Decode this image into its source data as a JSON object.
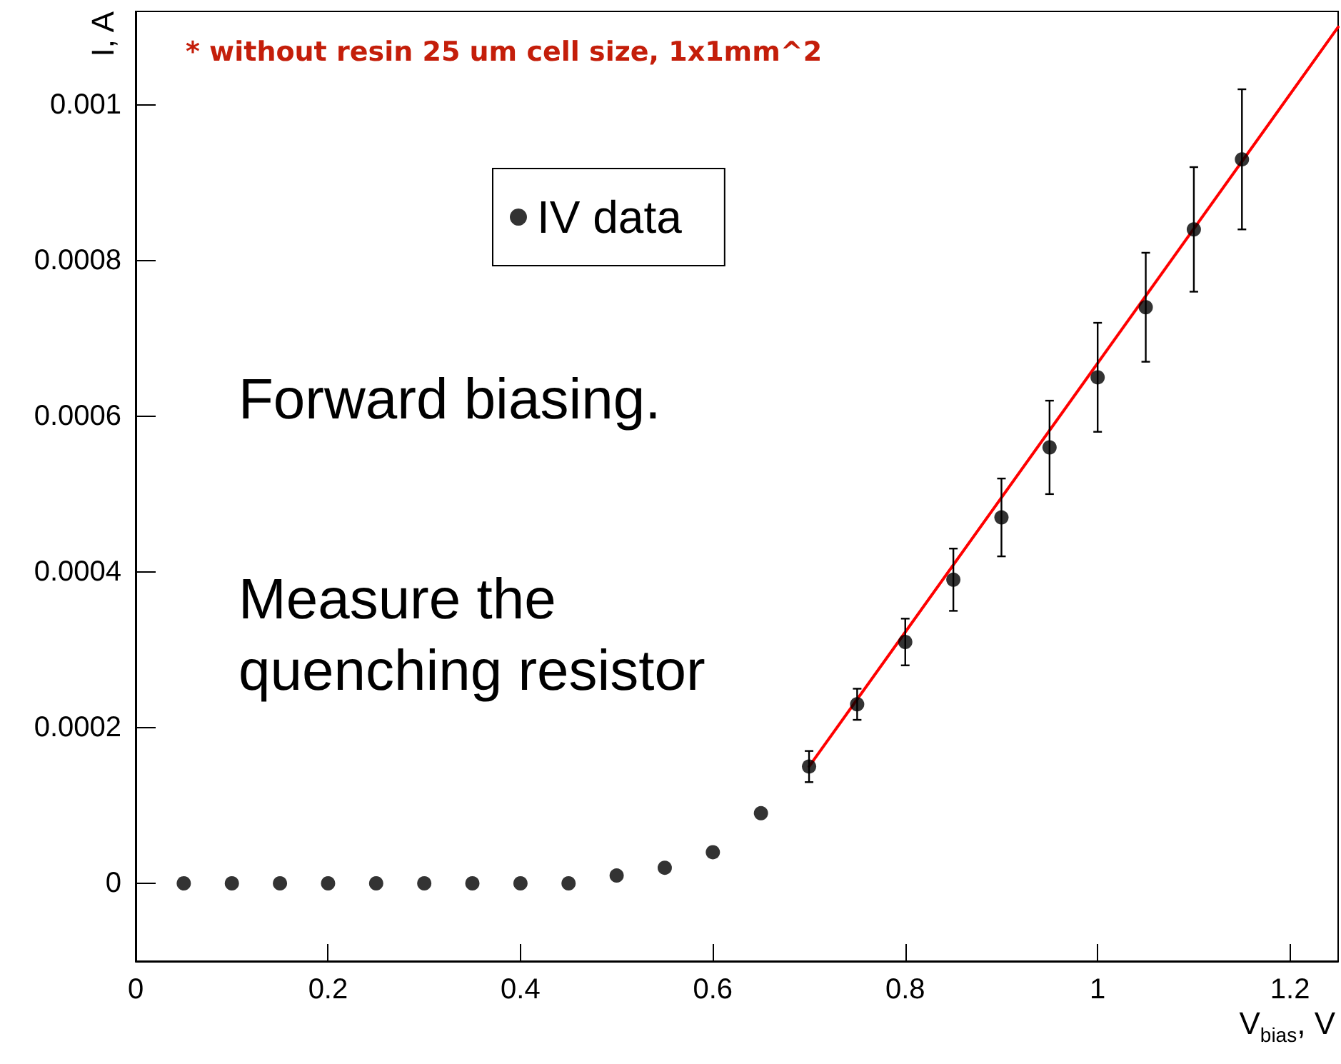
{
  "chart_data": {
    "type": "scatter",
    "title": "* without resin 25 um cell size, 1x1mm^2",
    "xlabel": "V$_{bias}$, V",
    "ylabel": "I, A",
    "annotations": [
      "Forward biasing.",
      "Measure the\nquenching resistor"
    ],
    "x": [
      0.05,
      0.1,
      0.15,
      0.2,
      0.25,
      0.3,
      0.35,
      0.4,
      0.45,
      0.5,
      0.55,
      0.6,
      0.65,
      0.7,
      0.75,
      0.8,
      0.85,
      0.9,
      0.95,
      1.0,
      1.05,
      1.1,
      1.15
    ],
    "series": [
      {
        "name": "IV data",
        "color": "#000000",
        "marker": "circle",
        "values": [
          0,
          0,
          0,
          0,
          0,
          0,
          0,
          0,
          0,
          1e-05,
          2e-05,
          4e-05,
          9e-05,
          0.00015,
          0.00023,
          0.00031,
          0.00039,
          0.00047,
          0.00056,
          0.00065,
          0.00074,
          0.00084,
          0.00093
        ],
        "errors": [
          null,
          null,
          null,
          null,
          null,
          null,
          null,
          null,
          null,
          null,
          null,
          null,
          null,
          2e-05,
          2e-05,
          3e-05,
          4e-05,
          5e-05,
          6e-05,
          7e-05,
          7e-05,
          8e-05,
          9e-05
        ]
      },
      {
        "type": "line",
        "color": "#ff0000",
        "x": [
          0.7,
          1.25
        ],
        "values": [
          0.00015,
          0.0011
        ]
      }
    ],
    "xlim": [
      0,
      1.25
    ],
    "xticks": [
      0,
      0.2,
      0.4,
      0.6,
      0.8,
      1,
      1.2
    ],
    "ylim": [
      -0.0001,
      0.00112
    ],
    "yticks": [
      0,
      0.0002,
      0.0004,
      0.0006,
      0.0008,
      0.001
    ],
    "grid": false,
    "legend": "top left",
    "line_style": "solid"
  }
}
